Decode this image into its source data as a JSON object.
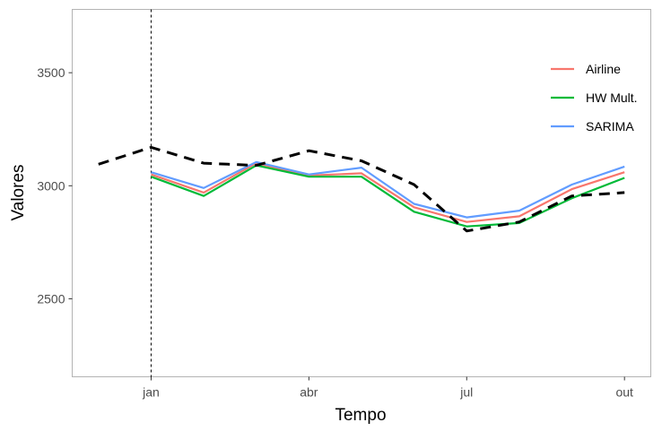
{
  "chart_data": {
    "type": "line",
    "xlabel": "Tempo",
    "ylabel": "Valores",
    "x_tick_labels": [
      "jan",
      "abr",
      "jul",
      "out"
    ],
    "x_tick_positions": [
      1,
      4,
      7,
      10
    ],
    "y_ticks": [
      2500,
      3000,
      3500
    ],
    "xlim": [
      -0.5,
      10.5
    ],
    "ylim": [
      2155,
      3780
    ],
    "grid": false,
    "legend_position": "top-right",
    "vertical_reference_line_x": 1,
    "series": [
      {
        "name": "Airline",
        "color": "#F8766D",
        "style": "solid",
        "x": [
          1,
          2,
          3,
          4,
          5,
          6,
          7,
          8,
          9,
          10
        ],
        "values": [
          3050,
          2970,
          3100,
          3045,
          3055,
          2905,
          2840,
          2865,
          2985,
          3060
        ]
      },
      {
        "name": "HW Mult.",
        "color": "#00BA38",
        "style": "solid",
        "x": [
          1,
          2,
          3,
          4,
          5,
          6,
          7,
          8,
          9,
          10
        ],
        "values": [
          3040,
          2955,
          3090,
          3040,
          3040,
          2885,
          2820,
          2835,
          2945,
          3035
        ]
      },
      {
        "name": "SARIMA",
        "color": "#619CFF",
        "style": "solid",
        "x": [
          1,
          2,
          3,
          4,
          5,
          6,
          7,
          8,
          9,
          10
        ],
        "values": [
          3060,
          2990,
          3105,
          3050,
          3080,
          2920,
          2860,
          2890,
          3005,
          3085
        ]
      },
      {
        "color": "#000000",
        "style": "dashed",
        "x": [
          0,
          1,
          2,
          3,
          4,
          5,
          6,
          7,
          8,
          9,
          10
        ],
        "values": [
          3095,
          3170,
          3100,
          3090,
          3155,
          3110,
          3005,
          2800,
          2840,
          2955,
          2970
        ]
      }
    ]
  }
}
